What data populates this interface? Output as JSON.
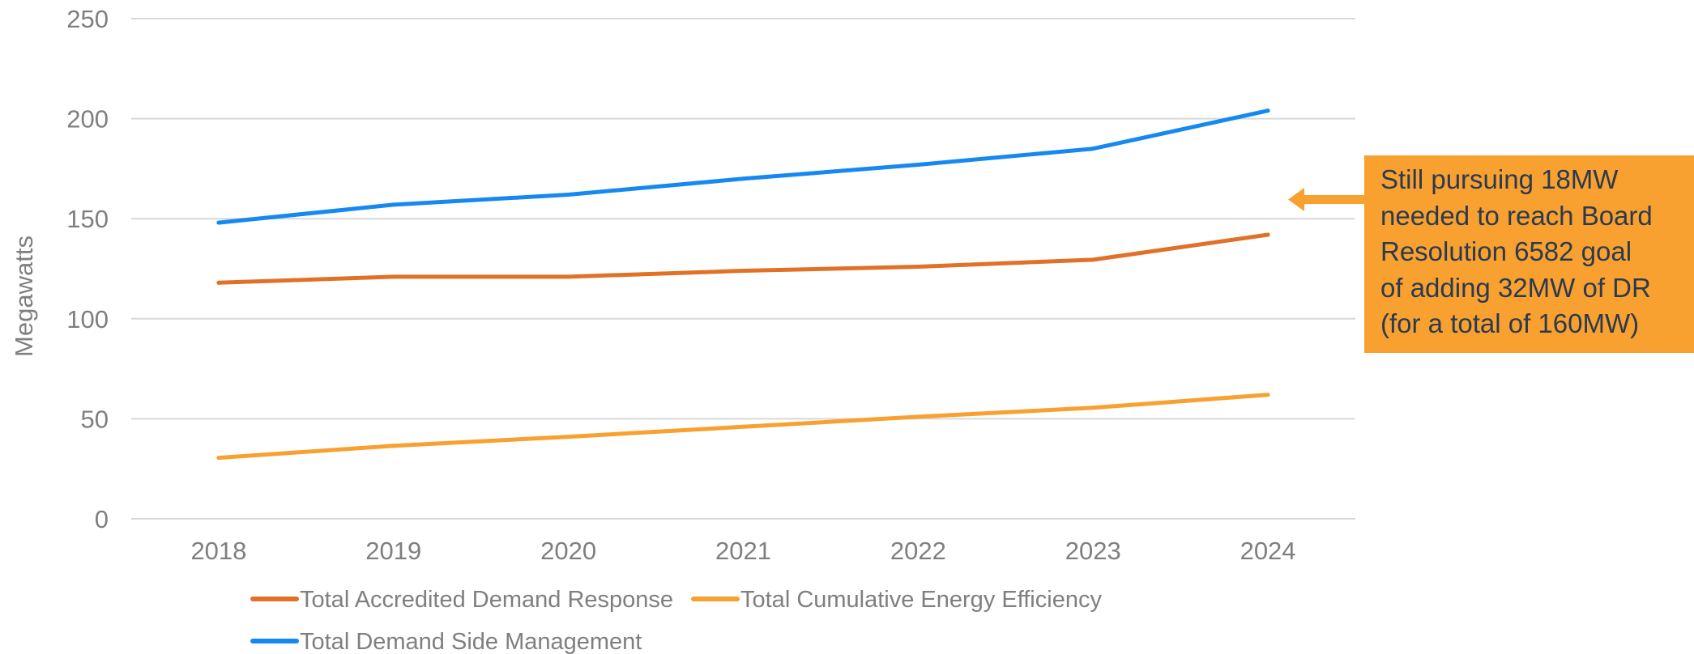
{
  "chart_data": {
    "type": "line",
    "xlabel": "",
    "ylabel": "Megawatts",
    "ylim": [
      0,
      250
    ],
    "y_ticks": [
      "0",
      "50",
      "100",
      "150",
      "200",
      "250"
    ],
    "categories": [
      "2018",
      "2019",
      "2020",
      "2021",
      "2022",
      "2023",
      "2024"
    ],
    "grid": true,
    "legend_position": "bottom",
    "series": [
      {
        "name": "Total Accredited Demand Response",
        "color": "#e07126",
        "values": [
          118,
          121,
          121,
          124,
          126,
          129.5,
          142
        ]
      },
      {
        "name": "Total Cumulative Energy Efficiency",
        "color": "#f8a030",
        "values": [
          30.5,
          36.5,
          41,
          46,
          51,
          55.5,
          62
        ]
      },
      {
        "name": "Total Demand Side Management",
        "color": "#1689f0",
        "values": [
          148,
          157,
          162,
          170,
          177,
          185,
          204
        ]
      }
    ],
    "annotation": {
      "color": "#f8a030",
      "lines": [
        "Still pursuing 18MW",
        "needed to reach Board",
        "Resolution 6582 goal",
        "of adding 32MW of DR",
        "(for a total of 160MW)"
      ]
    }
  }
}
